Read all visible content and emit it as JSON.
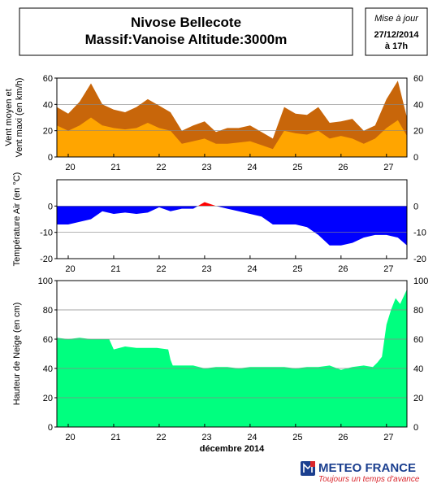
{
  "header": {
    "title_line1": "Nivose Bellecote",
    "title_line2": "Massif:Vanoise Altitude:3000m",
    "update_label": "Mise à jour",
    "update_date": "27/12/2014",
    "update_time": "à 17h"
  },
  "footer": {
    "brand": "METEO FRANCE",
    "slogan": "Toujours un temps d'avance",
    "colors": {
      "brand_blue": "#1b3f8f",
      "accent_red": "#d9262c"
    }
  },
  "chart_data": [
    {
      "type": "area",
      "ylabel": "Vent moyen et Vent maxi (en km/h)",
      "ylim": [
        0,
        60
      ],
      "yticks": [
        0,
        20,
        40,
        60
      ],
      "xlim": [
        19.75,
        27.45
      ],
      "xticks": [
        20,
        21,
        22,
        23,
        24,
        25,
        26,
        27
      ],
      "xtick_labels": [
        "20",
        "21",
        "22",
        "23",
        "24",
        "25",
        "26",
        "27"
      ],
      "grid": true,
      "colors": {
        "Vent maxi": "#c8660a",
        "Vent moyen": "#ffa500"
      },
      "series": [
        {
          "name": "Vent maxi",
          "x": [
            19.75,
            20.0,
            20.25,
            20.5,
            20.75,
            21.0,
            21.25,
            21.5,
            21.75,
            22.0,
            22.25,
            22.5,
            22.75,
            23.0,
            23.25,
            23.5,
            23.75,
            24.0,
            24.25,
            24.5,
            24.75,
            25.0,
            25.25,
            25.5,
            25.75,
            26.0,
            26.25,
            26.5,
            26.75,
            27.0,
            27.25,
            27.45
          ],
          "values": [
            38,
            33,
            42,
            56,
            40,
            36,
            34,
            38,
            44,
            39,
            34,
            20,
            24,
            27,
            19,
            22,
            22,
            24,
            19,
            14,
            38,
            33,
            32,
            38,
            26,
            27,
            29,
            20,
            24,
            44,
            58,
            30
          ]
        },
        {
          "name": "Vent moyen",
          "x": [
            19.75,
            20.0,
            20.25,
            20.5,
            20.75,
            21.0,
            21.25,
            21.5,
            21.75,
            22.0,
            22.25,
            22.5,
            22.75,
            23.0,
            23.25,
            23.5,
            23.75,
            24.0,
            24.25,
            24.5,
            24.75,
            25.0,
            25.25,
            25.5,
            25.75,
            26.0,
            26.25,
            26.5,
            26.75,
            27.0,
            27.25,
            27.45
          ],
          "values": [
            24,
            20,
            24,
            30,
            24,
            22,
            21,
            22,
            26,
            22,
            20,
            10,
            12,
            14,
            10,
            10,
            11,
            12,
            9,
            6,
            20,
            18,
            17,
            20,
            14,
            16,
            14,
            10,
            14,
            22,
            28,
            16
          ]
        }
      ]
    },
    {
      "type": "area",
      "ylabel": "Température Air (en °C)",
      "ylim": [
        -20,
        10
      ],
      "yticks": [
        -20,
        -10,
        0
      ],
      "xlim": [
        19.75,
        27.45
      ],
      "xticks": [
        20,
        21,
        22,
        23,
        24,
        25,
        26,
        27
      ],
      "xtick_labels": [
        "20",
        "21",
        "22",
        "23",
        "24",
        "25",
        "26",
        "27"
      ],
      "grid": true,
      "colors": {
        "negative": "#0000ff",
        "positive": "#ff0000"
      },
      "series": [
        {
          "name": "",
          "x": [
            19.75,
            20.0,
            20.25,
            20.5,
            20.75,
            21.0,
            21.25,
            21.5,
            21.75,
            22.0,
            22.25,
            22.5,
            22.75,
            23.0,
            23.25,
            23.5,
            23.75,
            24.0,
            24.25,
            24.5,
            24.75,
            25.0,
            25.25,
            25.5,
            25.75,
            26.0,
            26.25,
            26.5,
            26.75,
            27.0,
            27.25,
            27.45
          ],
          "values": [
            -7,
            -7,
            -6,
            -5,
            -2,
            -3,
            -2.5,
            -3,
            -2.5,
            -0.5,
            -2,
            -1,
            -1,
            1.5,
            0,
            -1,
            -2,
            -3,
            -4,
            -7,
            -7,
            -7,
            -8,
            -11,
            -15,
            -15,
            -14,
            -12,
            -11,
            -11,
            -12,
            -15
          ]
        }
      ]
    },
    {
      "type": "area",
      "ylabel": "Hauteur de Neige (en cm)",
      "xlabel": "décembre 2014",
      "ylim": [
        0,
        100
      ],
      "yticks": [
        0,
        20,
        40,
        60,
        80,
        100
      ],
      "xlim": [
        19.75,
        27.45
      ],
      "xticks": [
        20,
        21,
        22,
        23,
        24,
        25,
        26,
        27
      ],
      "xtick_labels": [
        "20",
        "21",
        "22",
        "23",
        "24",
        "25",
        "26",
        "27"
      ],
      "grid": true,
      "colors": {
        "fill": "#00ff7f"
      },
      "series": [
        {
          "name": "",
          "x": [
            19.75,
            20.0,
            20.25,
            20.5,
            20.75,
            20.9,
            21.0,
            21.25,
            21.5,
            21.75,
            21.95,
            22.2,
            22.25,
            22.3,
            22.5,
            22.75,
            23.0,
            23.25,
            23.5,
            23.75,
            24.0,
            24.25,
            24.5,
            24.75,
            25.0,
            25.25,
            25.5,
            25.75,
            26.0,
            26.25,
            26.5,
            26.7,
            26.8,
            26.9,
            27.0,
            27.1,
            27.2,
            27.3,
            27.45
          ],
          "values": [
            61,
            60,
            61,
            60,
            60,
            60,
            53,
            55,
            54,
            54,
            54,
            53,
            46,
            42,
            42,
            42,
            40,
            41,
            41,
            40,
            41,
            41,
            41,
            41,
            40,
            41,
            41,
            42,
            39,
            41,
            42,
            41,
            44,
            48,
            70,
            80,
            88,
            84,
            94
          ]
        }
      ]
    }
  ]
}
